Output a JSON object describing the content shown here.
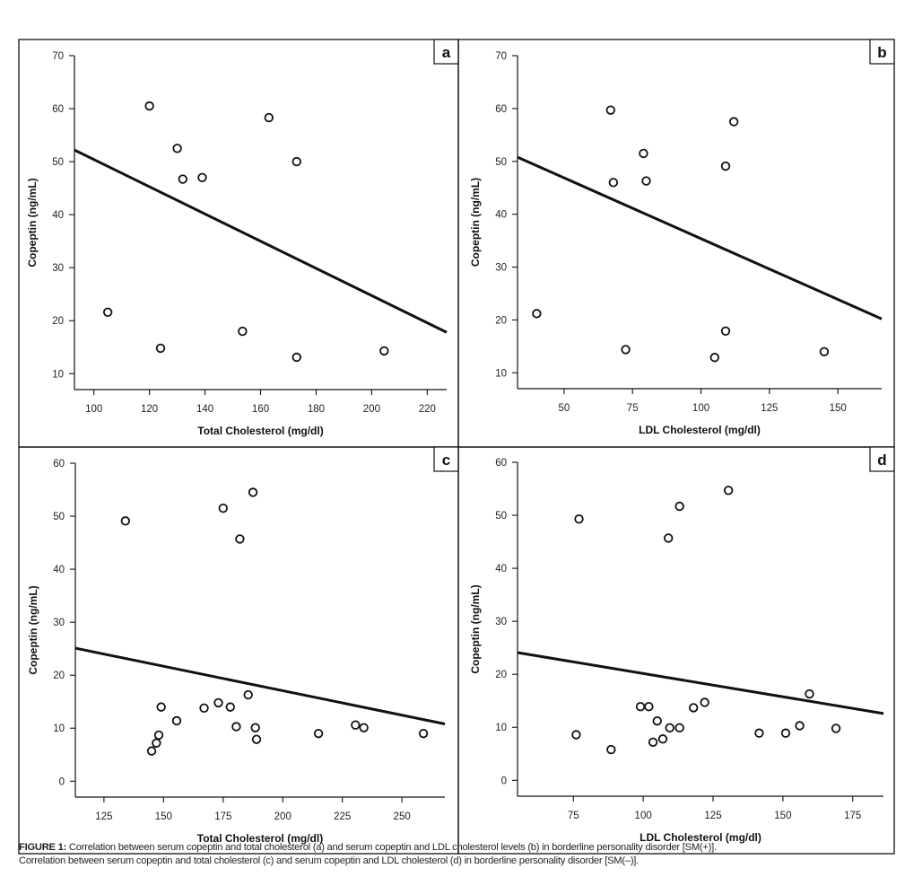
{
  "caption": {
    "label": "FIGURE 1:",
    "line1": " Correlation between serum copeptin and total cholesterol (a) and serum copeptin and LDL cholesterol levels (b) in borderline personality disorder [SM(+)].",
    "line2": "Correlation between serum copeptin and total cholesterol (c) and serum copeptin and LDL cholesterol (d) in borderline personality disorder [SM(–)]."
  },
  "chart_data": [
    {
      "type": "scatter",
      "panel": "a",
      "title": "",
      "xlabel": "Total Cholesterol (mg/dl)",
      "ylabel": "Copeptin (ng/mL)",
      "xlim": [
        93,
        227
      ],
      "ylim": [
        7,
        70
      ],
      "xticks": [
        100,
        120,
        140,
        160,
        180,
        200,
        220
      ],
      "yticks": [
        10,
        20,
        30,
        40,
        50,
        60,
        70
      ],
      "grid": false,
      "points": [
        [
          105,
          21.6
        ],
        [
          120,
          60.5
        ],
        [
          124,
          14.8
        ],
        [
          130,
          52.5
        ],
        [
          132,
          46.7
        ],
        [
          139,
          47.0
        ],
        [
          153.5,
          18.0
        ],
        [
          163,
          58.3
        ],
        [
          173,
          50.0
        ],
        [
          173,
          13.1
        ],
        [
          204.5,
          14.3
        ]
      ],
      "regression_line": [
        [
          93,
          52.2
        ],
        [
          227,
          17.8
        ]
      ]
    },
    {
      "type": "scatter",
      "panel": "b",
      "title": "",
      "xlabel": "LDL Cholesterol (mg/dl)",
      "ylabel": "Copeptin (ng/mL)",
      "xlim": [
        33,
        166
      ],
      "ylim": [
        7,
        70
      ],
      "xticks": [
        50,
        75,
        100,
        125,
        150
      ],
      "yticks": [
        10,
        20,
        30,
        40,
        50,
        60,
        70
      ],
      "grid": false,
      "points": [
        [
          40,
          21.2
        ],
        [
          67,
          59.7
        ],
        [
          68,
          46.0
        ],
        [
          72.5,
          14.4
        ],
        [
          79,
          51.5
        ],
        [
          80,
          46.3
        ],
        [
          105,
          12.9
        ],
        [
          109,
          49.1
        ],
        [
          109,
          17.9
        ],
        [
          112,
          57.5
        ],
        [
          145,
          14.0
        ]
      ],
      "regression_line": [
        [
          33,
          50.8
        ],
        [
          166,
          20.2
        ]
      ]
    },
    {
      "type": "scatter",
      "panel": "c",
      "title": "",
      "xlabel": "Total Cholesterol (mg/dl)",
      "ylabel": "Copeptin (ng/mL)",
      "xlim": [
        113,
        268
      ],
      "ylim": [
        -3,
        60
      ],
      "xticks": [
        125,
        150,
        175,
        200,
        225,
        250
      ],
      "yticks": [
        0,
        10,
        20,
        30,
        40,
        50,
        60
      ],
      "grid": false,
      "points": [
        [
          134,
          49.1
        ],
        [
          145,
          5.7
        ],
        [
          147,
          7.2
        ],
        [
          148,
          8.7
        ],
        [
          149,
          14.0
        ],
        [
          155.5,
          11.4
        ],
        [
          167,
          13.8
        ],
        [
          173,
          14.8
        ],
        [
          175,
          51.5
        ],
        [
          178,
          14.0
        ],
        [
          180.5,
          10.3
        ],
        [
          182,
          45.7
        ],
        [
          185.5,
          16.3
        ],
        [
          187.5,
          54.5
        ],
        [
          188.5,
          10.1
        ],
        [
          189,
          7.9
        ],
        [
          215,
          9.0
        ],
        [
          230.5,
          10.6
        ],
        [
          234,
          10.1
        ],
        [
          259,
          9.0
        ]
      ],
      "regression_line": [
        [
          113,
          25.1
        ],
        [
          268,
          10.8
        ]
      ]
    },
    {
      "type": "scatter",
      "panel": "d",
      "title": "",
      "xlabel": "LDL Cholesterol (mg/dl)",
      "ylabel": "Copeptin (ng/mL)",
      "xlim": [
        55,
        186
      ],
      "ylim": [
        -3,
        60
      ],
      "xticks": [
        75,
        100,
        125,
        150,
        175
      ],
      "yticks": [
        0,
        10,
        20,
        30,
        40,
        50,
        60
      ],
      "grid": false,
      "points": [
        [
          76,
          8.6
        ],
        [
          77,
          49.3
        ],
        [
          88.5,
          5.8
        ],
        [
          99,
          13.9
        ],
        [
          102,
          13.9
        ],
        [
          103.5,
          7.2
        ],
        [
          105,
          11.2
        ],
        [
          107,
          7.8
        ],
        [
          109,
          45.7
        ],
        [
          109.5,
          9.9
        ],
        [
          113,
          51.7
        ],
        [
          113,
          9.9
        ],
        [
          118,
          13.7
        ],
        [
          122,
          14.7
        ],
        [
          130.5,
          54.7
        ],
        [
          141.5,
          8.9
        ],
        [
          151,
          8.9
        ],
        [
          156,
          10.3
        ],
        [
          159.5,
          16.3
        ],
        [
          169,
          9.8
        ]
      ],
      "regression_line": [
        [
          55,
          24.1
        ],
        [
          186,
          12.6
        ]
      ]
    }
  ]
}
